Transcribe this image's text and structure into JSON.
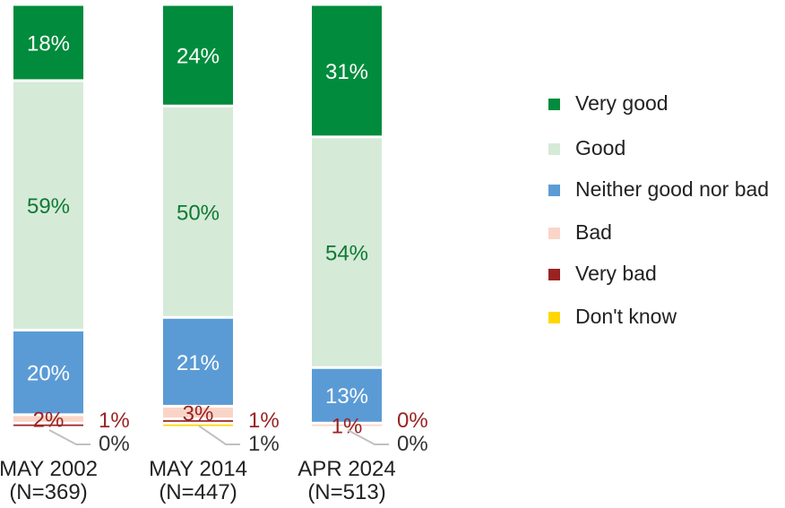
{
  "chart_data": {
    "type": "bar",
    "stacked": true,
    "categories": [
      "MAY 2002\n(N=369)",
      "MAY 2014\n(N=447)",
      "APR 2024\n(N=513)"
    ],
    "category_lines": [
      [
        "MAY 2002",
        "(N=369)"
      ],
      [
        "MAY 2014",
        "(N=447)"
      ],
      [
        "APR 2024",
        "(N=513)"
      ]
    ],
    "series": [
      {
        "name": "Very good",
        "values": [
          18,
          24,
          31
        ],
        "labels": [
          "18%",
          "24%",
          "31%"
        ],
        "color": "#008C3C",
        "label_color": "#ffffff"
      },
      {
        "name": "Good",
        "values": [
          59,
          50,
          54
        ],
        "labels": [
          "59%",
          "50%",
          "54%"
        ],
        "color": "#D6EAD8",
        "label_color": "#0E7A34"
      },
      {
        "name": "Neither good nor bad",
        "values": [
          20,
          21,
          13
        ],
        "labels": [
          "20%",
          "21%",
          "13%"
        ],
        "color": "#5B9BD5",
        "label_color": "#ffffff"
      },
      {
        "name": "Bad",
        "values": [
          2,
          3,
          1
        ],
        "labels": [
          "2%",
          "3%",
          "1%"
        ],
        "color": "#F9D5C8",
        "label_color": "#9B2222"
      },
      {
        "name": "Very bad",
        "values": [
          1,
          1,
          0
        ],
        "labels": [
          "1%",
          "1%",
          "0%"
        ],
        "color": "#9B2222",
        "label_color": "#9B2222"
      },
      {
        "name": "Don't know",
        "values": [
          0,
          1,
          0
        ],
        "labels": [
          "0%",
          "1%",
          "0%"
        ],
        "color": "#FFD700",
        "label_color": "#333333"
      }
    ],
    "ylim": [
      0,
      100
    ],
    "legend_position": "right"
  }
}
